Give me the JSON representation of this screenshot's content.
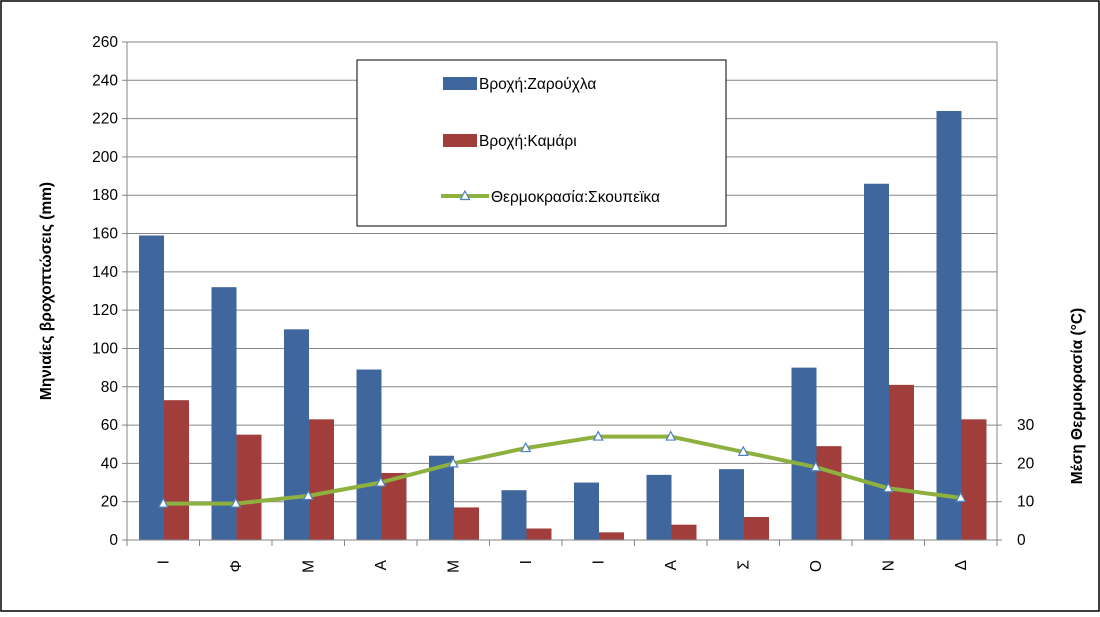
{
  "chart_data": {
    "type": "bar",
    "title": "",
    "categories": [
      "Ι",
      "Φ",
      "Μ",
      "Α",
      "Μ",
      "Ι",
      "Ι",
      "Α",
      "Σ",
      "Ο",
      "Ν",
      "Δ"
    ],
    "ylabel": "Μηνιαίες βροχοπτώσεις (mm)",
    "y2label": "Μέση Θερμοκρασία (°C)",
    "ylim": [
      0,
      260
    ],
    "yticks": [
      0,
      20,
      40,
      60,
      80,
      100,
      120,
      140,
      160,
      180,
      200,
      220,
      240,
      260
    ],
    "y2lim": [
      0,
      130
    ],
    "y2ticks": [
      0,
      10,
      20,
      30
    ],
    "grid": true,
    "legend_position": "top-center",
    "series": [
      {
        "name": "Βροχή:Ζαρούχλα",
        "type": "bar",
        "axis": "left",
        "color": "#3F679E",
        "values": [
          159,
          132,
          110,
          89,
          44,
          26,
          30,
          34,
          37,
          90,
          186,
          224
        ]
      },
      {
        "name": "Βροχή:Καμάρι",
        "type": "bar",
        "axis": "left",
        "color": "#A13E3C",
        "values": [
          73,
          55,
          63,
          35,
          17,
          6,
          4,
          8,
          12,
          49,
          81,
          63
        ]
      },
      {
        "name": "Θερμοκρασία:Σκουπεϊκα",
        "type": "line",
        "axis": "right",
        "color": "#8DB03F",
        "marker": "triangle",
        "values": [
          9.5,
          9.5,
          11.5,
          15,
          20,
          24,
          27,
          27,
          23,
          19,
          13.5,
          11
        ]
      }
    ]
  }
}
